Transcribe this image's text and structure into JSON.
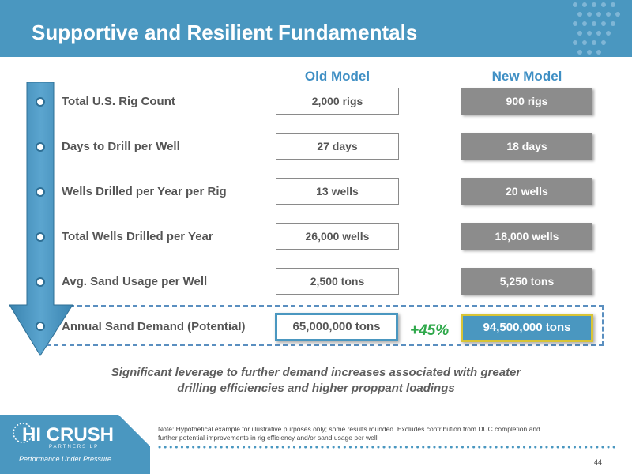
{
  "slide": {
    "title": "Supportive and Resilient Fundamentals",
    "columns": {
      "old": "Old Model",
      "new": "New Model"
    },
    "rows": [
      {
        "label": "Total U.S. Rig Count",
        "old": "2,000 rigs",
        "new": "900 rigs"
      },
      {
        "label": "Days to Drill per Well",
        "old": "27 days",
        "new": "18 days"
      },
      {
        "label": "Wells Drilled per Year per Rig",
        "old": "13 wells",
        "new": "20 wells"
      },
      {
        "label": "Total Wells Drilled per Year",
        "old": "26,000 wells",
        "new": "18,000 wells"
      },
      {
        "label": "Avg. Sand Usage per Well",
        "old": "2,500 tons",
        "new": "5,250 tons"
      },
      {
        "label": "Annual Sand Demand (Potential)",
        "old": "65,000,000 tons",
        "new": "94,500,000 tons"
      }
    ],
    "change": "+45%",
    "summary_line1": "Significant leverage to further demand increases associated with greater",
    "summary_line2": "drilling efficiencies and higher proppant loadings",
    "note_line1": "Note: Hypothetical example for illustrative purposes only; some results rounded. Excludes contribution from DUC completion and",
    "note_line2": "further potential improvements in rig efficiency and/or sand usage per well",
    "page_number": "44"
  },
  "logo": {
    "name": "HI CRUSH",
    "sub": "PARTNERS LP",
    "tagline": "Performance Under Pressure"
  },
  "colors": {
    "header": "#4a97c0",
    "accent": "#3f8fc4",
    "new_box": "#8c8c8c",
    "highlight_border": "#d8c436",
    "increase": "#2ea84a"
  }
}
